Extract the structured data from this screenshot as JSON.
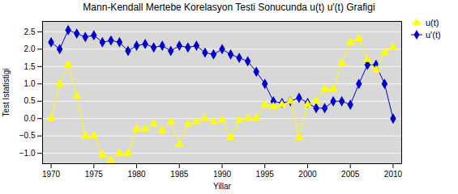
{
  "chart_data": {
    "type": "line",
    "title": "Mann-Kendall Mertebe Korelasyon Testi Sonucunda u(t) u'(t) Grafigi",
    "xlabel": "Yillar",
    "ylabel": "Test Istatistigi",
    "x": [
      1970,
      1971,
      1972,
      1973,
      1974,
      1975,
      1976,
      1977,
      1978,
      1979,
      1980,
      1981,
      1982,
      1983,
      1984,
      1985,
      1986,
      1987,
      1988,
      1989,
      1990,
      1991,
      1992,
      1993,
      1994,
      1995,
      1996,
      1997,
      1998,
      1999,
      2000,
      2001,
      2002,
      2003,
      2004,
      2005,
      2006,
      2007,
      2008,
      2009,
      2010
    ],
    "series": [
      {
        "name": "u(t)",
        "color": "#ffff00",
        "marker": "triangle",
        "values": [
          0.0,
          1.0,
          1.55,
          0.65,
          -0.5,
          -0.5,
          -1.05,
          -1.2,
          -1.0,
          -1.0,
          -0.3,
          -0.3,
          -0.15,
          -0.35,
          -0.1,
          -0.75,
          -0.15,
          -0.1,
          0.0,
          -0.1,
          -0.05,
          -0.55,
          -0.05,
          0.0,
          0.0,
          0.4,
          0.35,
          0.4,
          0.5,
          -0.55,
          0.4,
          0.5,
          0.85,
          0.85,
          1.6,
          2.2,
          2.3,
          1.7,
          1.4,
          1.9,
          2.05
        ]
      },
      {
        "name": "u'(t)",
        "color": "#0000cc",
        "marker": "diamond",
        "values": [
          2.2,
          2.0,
          2.55,
          2.45,
          2.35,
          2.4,
          2.2,
          2.25,
          2.2,
          1.95,
          2.1,
          2.15,
          2.05,
          2.1,
          1.95,
          2.1,
          2.05,
          2.1,
          1.9,
          1.85,
          2.0,
          1.85,
          1.75,
          1.65,
          1.35,
          1.0,
          0.5,
          0.45,
          0.5,
          0.6,
          0.45,
          0.3,
          0.3,
          0.5,
          0.5,
          0.4,
          1.0,
          1.55,
          1.55,
          1.0,
          0.0
        ]
      }
    ],
    "xlim": [
      1969,
      2011
    ],
    "xticks": [
      1970,
      1975,
      1980,
      1985,
      1990,
      1995,
      2000,
      2005,
      2010
    ],
    "ylim": [
      -1.3,
      2.8
    ],
    "yticks": [
      {
        "value": -1.0,
        "label": "−1.0"
      },
      {
        "value": -0.5,
        "label": "−0.5"
      },
      {
        "value": 0.0,
        "label": "0.0"
      },
      0.5,
      {
        "value": 1.0,
        "label": "1.0"
      },
      1.5,
      {
        "value": 2.0,
        "label": "2.0"
      },
      2.5
    ],
    "grid": true,
    "legend": "upper right"
  }
}
